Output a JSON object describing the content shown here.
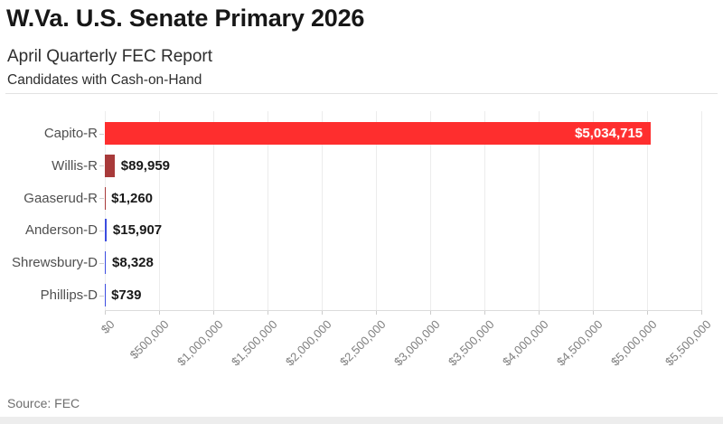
{
  "header": {
    "title": "W.Va. U.S. Senate Primary 2026",
    "subtitle": "April Quarterly FEC Report",
    "description": "Candidates with Cash-on-Hand"
  },
  "footer": {
    "source": "Source: FEC"
  },
  "colors": {
    "republican_red": "#fe2e2e",
    "republican_dark_red": "#a83a3a",
    "democrat_blue": "#3c4de0",
    "gridline": "#ececec",
    "bottom_strip": "#ededed"
  },
  "chart_data": {
    "type": "bar",
    "orientation": "horizontal",
    "title": "W.Va. U.S. Senate Primary 2026",
    "subtitle": "April Quarterly FEC Report",
    "note": "Candidates with Cash-on-Hand",
    "source": "Source: FEC",
    "xlabel": "",
    "ylabel": "",
    "xlim": [
      0,
      5500000
    ],
    "grid": true,
    "legend": "none",
    "categories": [
      "Capito-R",
      "Willis-R",
      "Gaaserud-R",
      "Anderson-D",
      "Shrewsbury-D",
      "Phillips-D"
    ],
    "values": [
      5034715,
      89959,
      1260,
      15907,
      8328,
      739
    ],
    "value_labels": [
      "$5,034,715",
      "$89,959",
      "$1,260",
      "$15,907",
      "$8,328",
      "$739"
    ],
    "bar_colors": [
      "#fe2e2e",
      "#a83a3a",
      "#a83a3a",
      "#3c4de0",
      "#3c4de0",
      "#3c4de0"
    ],
    "x_tick_values": [
      0,
      500000,
      1000000,
      1500000,
      2000000,
      2500000,
      3000000,
      3500000,
      4000000,
      4500000,
      5000000,
      5500000
    ],
    "x_tick_labels": [
      "$0",
      "$500,000",
      "$1,000,000",
      "$1,500,000",
      "$2,000,000",
      "$2,500,000",
      "$3,000,000",
      "$3,500,000",
      "$4,000,000",
      "$4,500,000",
      "$5,000,000",
      "$5,500,000"
    ]
  }
}
